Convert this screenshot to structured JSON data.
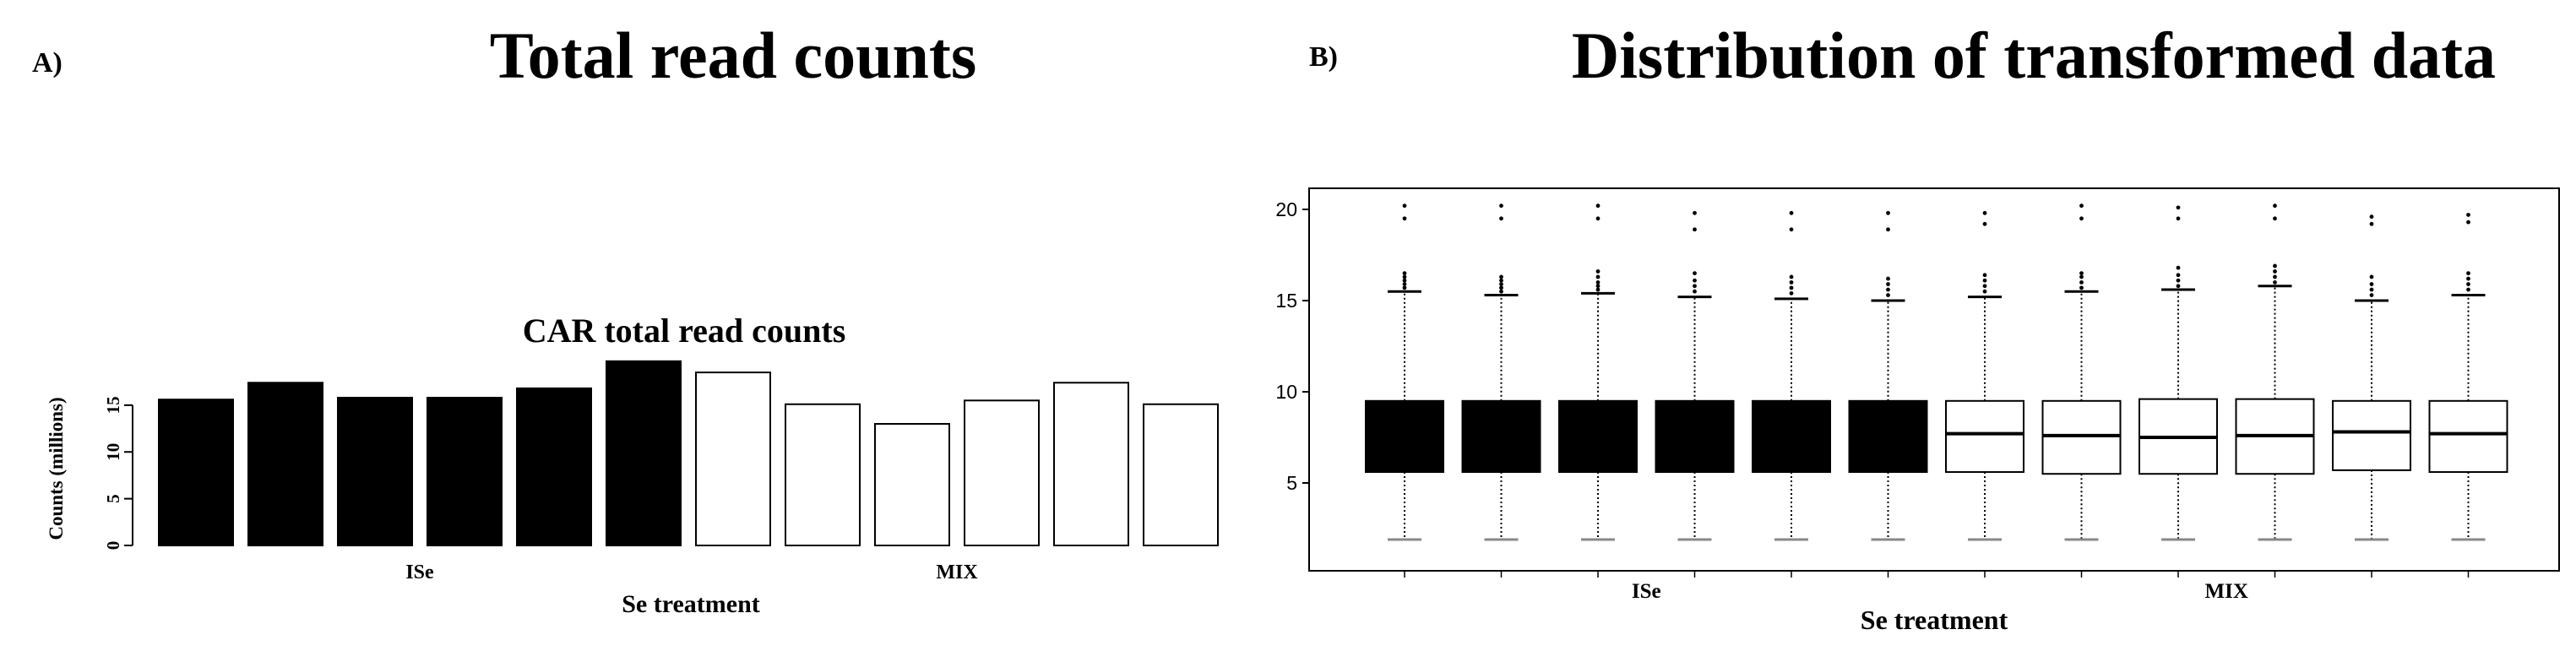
{
  "panels": {
    "a_label": "A)",
    "b_label": "B)",
    "a_title": "Total read counts",
    "b_title": "Distribution of transformed data"
  },
  "chart_data": [
    {
      "type": "bar",
      "title": "CAR total read counts",
      "xlabel": "Se treatment",
      "ylabel": "Counts (millions)",
      "ylim": [
        0,
        19.5
      ],
      "yticks": [
        0,
        5,
        10,
        15
      ],
      "groups": [
        {
          "label": "ISe",
          "fill": "#000000"
        },
        {
          "label": "MIX",
          "fill": "#ffffff"
        }
      ],
      "values": [
        15.6,
        17.4,
        15.8,
        15.8,
        16.8,
        19.7,
        18.5,
        15.1,
        13.0,
        15.5,
        17.4,
        15.1
      ],
      "group_index": [
        0,
        0,
        0,
        0,
        0,
        0,
        1,
        1,
        1,
        1,
        1,
        1
      ],
      "grid": false,
      "legend": "none"
    },
    {
      "type": "boxplot",
      "xlabel": "Se treatment",
      "ylabel": "",
      "ylim": [
        0,
        21.5
      ],
      "yticks": [
        5,
        10,
        15,
        20
      ],
      "groups": [
        {
          "label": "ISe",
          "fill": "#000000"
        },
        {
          "label": "MIX",
          "fill": "#ffffff"
        }
      ],
      "group_index": [
        0,
        0,
        0,
        0,
        0,
        0,
        1,
        1,
        1,
        1,
        1,
        1
      ],
      "boxes": [
        {
          "min": 1.9,
          "q1": 5.6,
          "median": 7.6,
          "q3": 9.5,
          "max": 15.5,
          "outliers": [
            15.7,
            15.9,
            16.1,
            16.3,
            16.5,
            19.5,
            20.2
          ]
        },
        {
          "min": 1.9,
          "q1": 5.6,
          "median": 7.6,
          "q3": 9.5,
          "max": 15.3,
          "outliers": [
            15.5,
            15.7,
            15.9,
            16.1,
            16.3,
            19.5,
            20.2
          ]
        },
        {
          "min": 1.9,
          "q1": 5.6,
          "median": 7.6,
          "q3": 9.5,
          "max": 15.4,
          "outliers": [
            15.6,
            15.8,
            16.0,
            16.3,
            16.6,
            19.5,
            20.2
          ]
        },
        {
          "min": 1.9,
          "q1": 5.6,
          "median": 7.6,
          "q3": 9.5,
          "max": 15.2,
          "outliers": [
            15.5,
            15.8,
            16.1,
            16.5,
            18.9,
            19.8
          ]
        },
        {
          "min": 1.9,
          "q1": 5.6,
          "median": 7.6,
          "q3": 9.5,
          "max": 15.1,
          "outliers": [
            15.4,
            15.7,
            16.0,
            16.3,
            18.9,
            19.8
          ]
        },
        {
          "min": 1.9,
          "q1": 5.6,
          "median": 7.6,
          "q3": 9.5,
          "max": 15.0,
          "outliers": [
            15.3,
            15.6,
            15.9,
            16.2,
            18.9,
            19.8
          ]
        },
        {
          "min": 1.9,
          "q1": 5.6,
          "median": 7.7,
          "q3": 9.5,
          "max": 15.2,
          "outliers": [
            15.5,
            15.8,
            16.1,
            16.4,
            19.2,
            19.8
          ]
        },
        {
          "min": 1.9,
          "q1": 5.5,
          "median": 7.6,
          "q3": 9.5,
          "max": 15.5,
          "outliers": [
            15.7,
            16.0,
            16.3,
            16.5,
            19.5,
            20.2
          ]
        },
        {
          "min": 1.9,
          "q1": 5.5,
          "median": 7.5,
          "q3": 9.6,
          "max": 15.6,
          "outliers": [
            15.8,
            16.1,
            16.4,
            16.8,
            19.5,
            20.1
          ]
        },
        {
          "min": 1.9,
          "q1": 5.5,
          "median": 7.6,
          "q3": 9.6,
          "max": 15.8,
          "outliers": [
            16.0,
            16.3,
            16.6,
            16.9,
            19.5,
            20.2
          ]
        },
        {
          "min": 1.9,
          "q1": 5.7,
          "median": 7.8,
          "q3": 9.5,
          "max": 15.0,
          "outliers": [
            15.3,
            15.6,
            15.9,
            16.3,
            19.2,
            19.6
          ]
        },
        {
          "min": 1.9,
          "q1": 5.6,
          "median": 7.7,
          "q3": 9.5,
          "max": 15.3,
          "outliers": [
            15.6,
            15.9,
            16.2,
            16.5,
            19.3,
            19.7
          ]
        }
      ],
      "grid": false,
      "legend": "none"
    }
  ]
}
